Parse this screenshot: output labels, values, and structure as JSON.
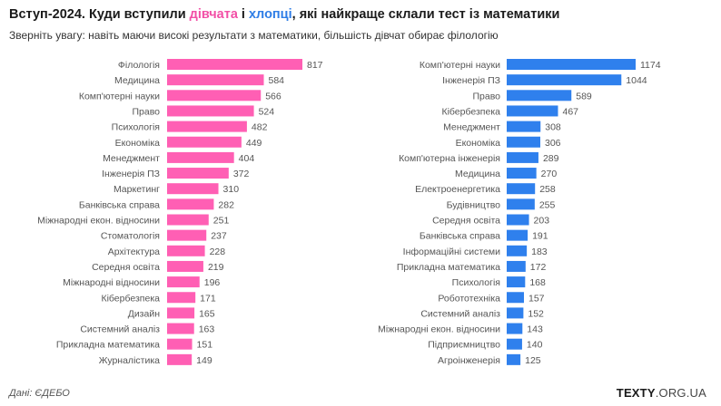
{
  "header": {
    "title_prefix": "Вступ-2024. Куди вступили ",
    "title_girls": "дівчата",
    "title_mid": " і ",
    "title_boys": "хлопці",
    "title_suffix": ", які найкраще склали тест із математики",
    "subtitle": "Зверніть увагу: навіть маючи високі результати з математики, більшість дівчат обирає філологію"
  },
  "footer": {
    "source": "Дані: ЄДЕБО",
    "brand_main": "TEXTY",
    "brand_suffix": ".ORG.UA"
  },
  "colors": {
    "girls": "#ff5fb4",
    "boys": "#2f80ed"
  },
  "chart_data": [
    {
      "type": "bar",
      "orientation": "horizontal",
      "series_name": "дівчата",
      "categories": [
        "Філологія",
        "Медицина",
        "Комп'ютерні науки",
        "Право",
        "Психологія",
        "Економіка",
        "Менеджмент",
        "Інженерія ПЗ",
        "Маркетинг",
        "Банківська справа",
        "Міжнародні екон. відносини",
        "Стоматологія",
        "Архітектура",
        "Середня освіта",
        "Міжнародні відносини",
        "Кібербезпека",
        "Дизайн",
        "Системний аналіз",
        "Прикладна математика",
        "Журналістика"
      ],
      "values": [
        817,
        584,
        566,
        524,
        482,
        449,
        404,
        372,
        310,
        282,
        251,
        237,
        228,
        219,
        196,
        171,
        165,
        163,
        151,
        149
      ]
    },
    {
      "type": "bar",
      "orientation": "horizontal",
      "series_name": "хлопці",
      "categories": [
        "Комп'ютерні науки",
        "Інженерія ПЗ",
        "Право",
        "Кібербезпека",
        "Менеджмент",
        "Економіка",
        "Комп'ютерна інженерія",
        "Медицина",
        "Електроенергетика",
        "Будівництво",
        "Середня освіта",
        "Банківська справа",
        "Інформаційні системи",
        "Прикладна математика",
        "Психологія",
        "Робототехніка",
        "Системний аналіз",
        "Міжнародні екон. відносини",
        "Підприємництво",
        "Агроінженерія"
      ],
      "values": [
        1174,
        1044,
        589,
        467,
        308,
        306,
        289,
        270,
        258,
        255,
        203,
        191,
        183,
        172,
        168,
        157,
        152,
        143,
        140,
        125
      ]
    }
  ]
}
